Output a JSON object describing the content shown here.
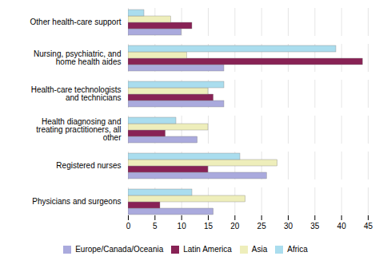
{
  "chart_data": {
    "type": "bar",
    "orientation": "horizontal",
    "categories": [
      "Physicians and surgeons",
      "Registered nurses",
      "Health diagnosing and\ntreating practitioners, all\nother",
      "Health-care technologists\nand technicians",
      "Nursing, psychiatric, and\nhome health aides",
      "Other health-care support"
    ],
    "series": [
      {
        "name": "Europe/Canada/Oceania",
        "color": "#aaaadd",
        "values": [
          16,
          26,
          13,
          18,
          18,
          10
        ]
      },
      {
        "name": "Latin America",
        "color": "#882255",
        "values": [
          6,
          15,
          7,
          16,
          44,
          12
        ]
      },
      {
        "name": "Asia",
        "color": "#eeeebb",
        "values": [
          22,
          28,
          15,
          15,
          11,
          8
        ]
      },
      {
        "name": "Africa",
        "color": "#aaddee",
        "values": [
          12,
          21,
          9,
          18,
          39,
          3
        ]
      }
    ],
    "xlim": [
      0,
      45
    ],
    "xticks": [
      0,
      5,
      10,
      15,
      20,
      25,
      30,
      35,
      40,
      45
    ],
    "grid": true,
    "legend": "bottom"
  }
}
